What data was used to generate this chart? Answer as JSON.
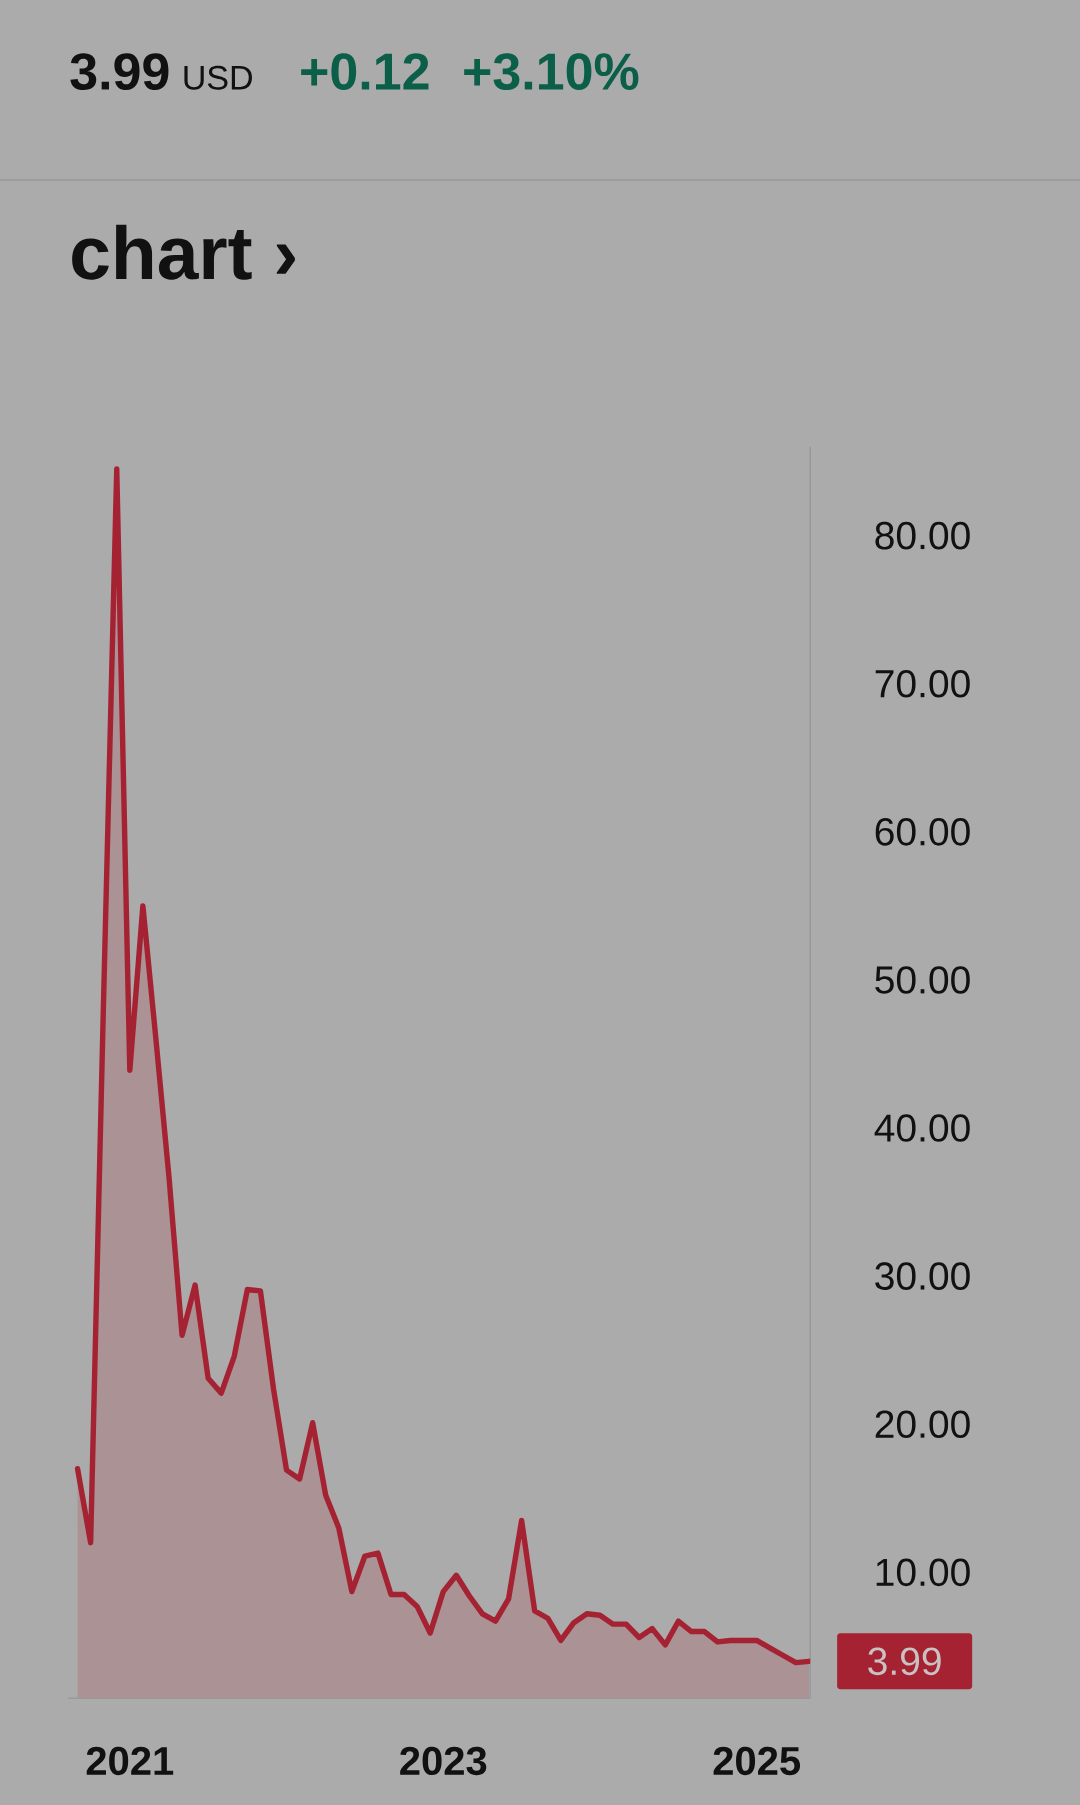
{
  "chart_data": {
    "type": "area",
    "title": "chart ›",
    "x": [
      "2020-09",
      "2020-10",
      "2020-11",
      "2020-12",
      "2021-01",
      "2021-02",
      "2021-03",
      "2021-04",
      "2021-05",
      "2021-06",
      "2021-07",
      "2021-08",
      "2021-09",
      "2021-10",
      "2021-11",
      "2021-12",
      "2022-01",
      "2022-02",
      "2022-03",
      "2022-04",
      "2022-05",
      "2022-06",
      "2022-07",
      "2022-08",
      "2022-09",
      "2022-10",
      "2022-11",
      "2022-12",
      "2023-01",
      "2023-02",
      "2023-03",
      "2023-04",
      "2023-05",
      "2023-06",
      "2023-07",
      "2023-08",
      "2023-09",
      "2023-10",
      "2023-11",
      "2023-12",
      "2024-01",
      "2024-02",
      "2024-03",
      "2024-04",
      "2024-05",
      "2024-06",
      "2024-07",
      "2024-08",
      "2024-09",
      "2024-10",
      "2024-11",
      "2024-12",
      "2025-01",
      "2025-02",
      "2025-03",
      "2025-04",
      "2025-05"
    ],
    "series": [
      {
        "color": "#a52232",
        "values": [
          17.0,
          12.0,
          49,
          84.5,
          43.9,
          55.0,
          46,
          36.7,
          26.0,
          29.4,
          23.1,
          22.1,
          24.6,
          29.1,
          29.0,
          22.4,
          16.9,
          16.3,
          20.1,
          15.2,
          13.0,
          8.7,
          11.1,
          11.3,
          8.5,
          8.5,
          7.7,
          5.9,
          8.7,
          9.8,
          8.4,
          7.2,
          6.7,
          8.2,
          13.5,
          7.4,
          6.9,
          5.4,
          6.6,
          7.2,
          7.1,
          6.5,
          6.5,
          5.6,
          6.2,
          5.1,
          6.7,
          6.0,
          6.0,
          5.3,
          5.4,
          5.4,
          5.4,
          4.9,
          4.4,
          3.9,
          3.99
        ]
      }
    ],
    "xlim": [
      "2020-08-10",
      "2025-05-04"
    ],
    "ylim": [
      1.5,
      86
    ],
    "xticks": [
      {
        "value": "2021",
        "label": "2021"
      },
      {
        "value": "2023",
        "label": "2023"
      },
      {
        "value": "2025",
        "label": "2025"
      }
    ],
    "yticks": [
      {
        "value": 10,
        "label": "10.00"
      },
      {
        "value": 20,
        "label": "20.00"
      },
      {
        "value": 30,
        "label": "30.00"
      },
      {
        "value": 40,
        "label": "40.00"
      },
      {
        "value": 50,
        "label": "50.00"
      },
      {
        "value": 60,
        "label": "60.00"
      },
      {
        "value": 70,
        "label": "70.00"
      },
      {
        "value": 80,
        "label": "80.00"
      }
    ],
    "annotations": [
      "3.99",
      "USD",
      "+0.12",
      "+3.10%",
      {
        "text": "3.99",
        "x": "2025-05",
        "y": 3.99
      }
    ]
  }
}
